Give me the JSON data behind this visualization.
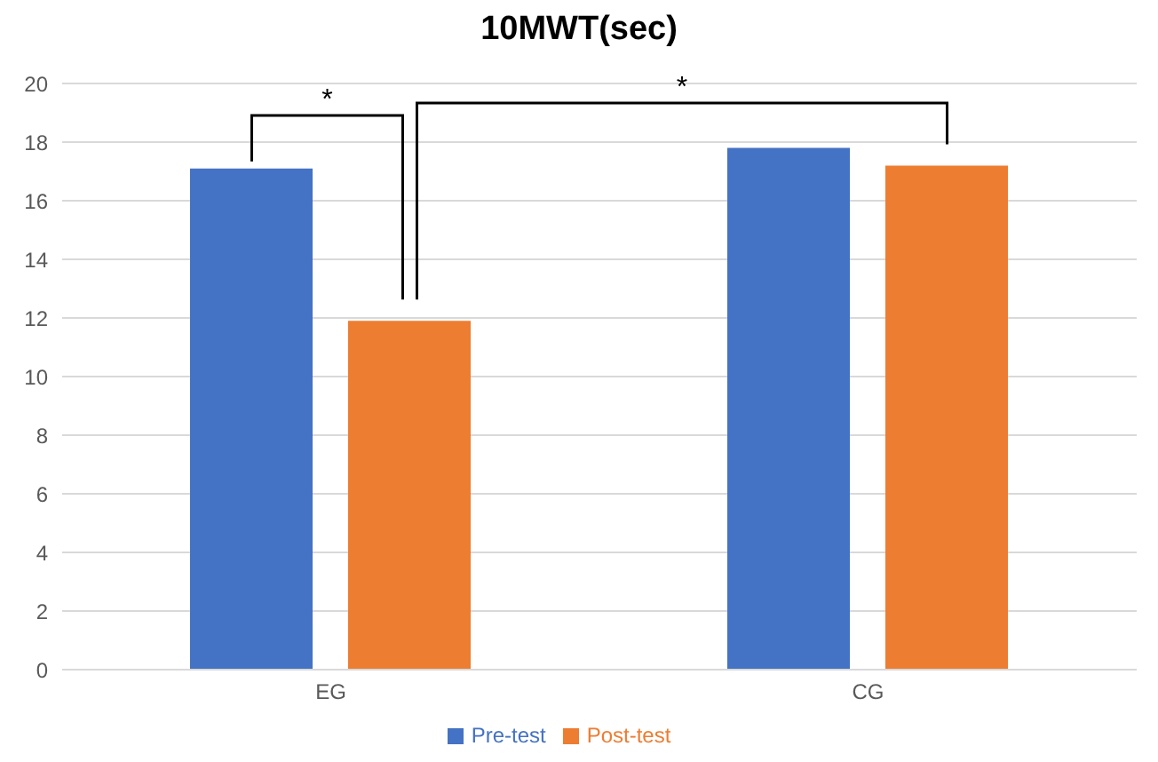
{
  "chart_data": {
    "type": "bar",
    "title": "10MWT(sec)",
    "categories": [
      "EG",
      "CG"
    ],
    "series": [
      {
        "name": "Pre-test",
        "color": "#4472c4",
        "values": [
          17.1,
          17.8
        ]
      },
      {
        "name": "Post-test",
        "color": "#ed7d31",
        "values": [
          11.9,
          17.2
        ]
      }
    ],
    "ylim": [
      0,
      20
    ],
    "yticks": [
      0,
      2,
      4,
      6,
      8,
      10,
      12,
      14,
      16,
      18,
      20
    ],
    "grid": "y",
    "legend": "bottom",
    "annotations": [
      "*",
      "*"
    ]
  }
}
